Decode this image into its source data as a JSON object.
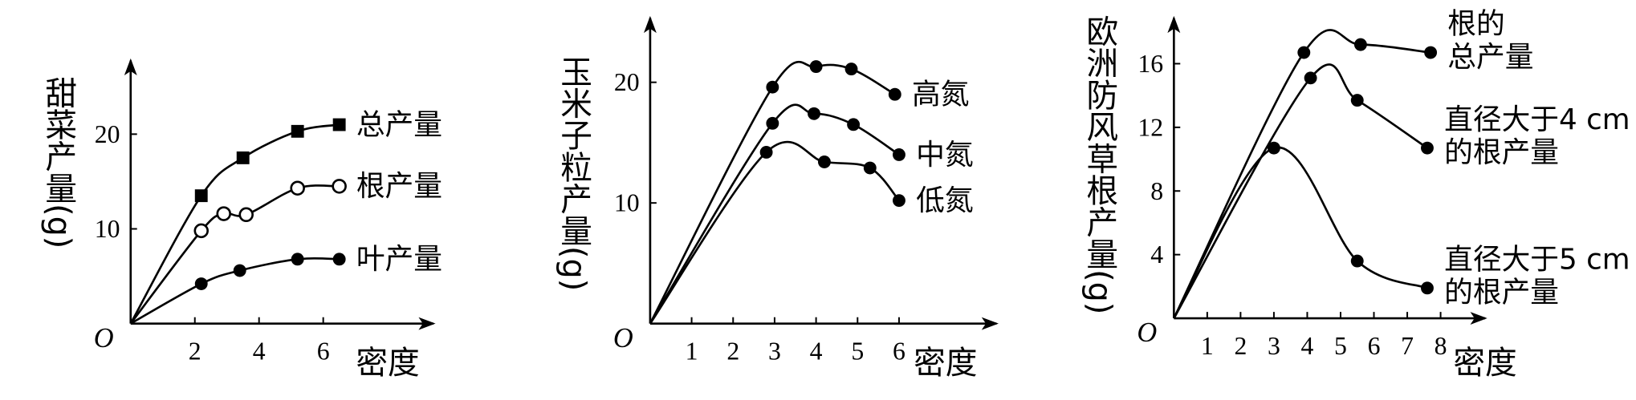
{
  "chart_data": [
    {
      "type": "line",
      "origin_label": "O",
      "y_label": "甜菜产量(g)",
      "x_label": "密度",
      "xlim": [
        0,
        9.5
      ],
      "ylim": [
        0,
        28
      ],
      "xticks": [
        2,
        4,
        6
      ],
      "yticks": [
        10,
        20
      ],
      "series": [
        {
          "name": "总产量",
          "color": "#000",
          "marker": "square",
          "x": [
            2.2,
            3.5,
            5.2,
            6.5
          ],
          "values": [
            13.5,
            17.5,
            20.3,
            21
          ]
        },
        {
          "name": "根产量",
          "color": "#000",
          "marker": "open-circle",
          "x": [
            2.2,
            2.9,
            3.6,
            5.2,
            6.5
          ],
          "values": [
            9.8,
            11.6,
            11.5,
            14.3,
            14.5
          ]
        },
        {
          "name": "叶产量",
          "color": "#000",
          "marker": "circle",
          "x": [
            2.2,
            3.4,
            5.2,
            6.5
          ],
          "values": [
            4.2,
            5.6,
            6.8,
            6.8
          ]
        }
      ]
    },
    {
      "type": "line",
      "origin_label": "O",
      "y_label": "玉米子粒产量(g)",
      "x_label": "密度",
      "xlim": [
        0,
        8.4
      ],
      "ylim": [
        0,
        25.5
      ],
      "xticks": [
        1,
        2,
        3,
        4,
        5,
        6
      ],
      "yticks": [
        10,
        20
      ],
      "series": [
        {
          "name": "高氮",
          "color": "#000",
          "marker": "circle",
          "x": [
            2.95,
            4.0,
            4.85,
            5.9
          ],
          "values": [
            19.6,
            21.3,
            21.1,
            19.0
          ]
        },
        {
          "name": "中氮",
          "color": "#000",
          "marker": "circle",
          "x": [
            2.95,
            3.95,
            4.9,
            6.0
          ],
          "values": [
            16.6,
            17.4,
            16.5,
            14.0
          ]
        },
        {
          "name": "低氮",
          "color": "#000",
          "marker": "circle",
          "x": [
            2.8,
            4.2,
            5.3,
            6.0
          ],
          "values": [
            14.2,
            13.4,
            12.9,
            10.2
          ]
        }
      ]
    },
    {
      "type": "line",
      "origin_label": "O",
      "y_label": "欧洲防风草根产量(g)",
      "x_label": "密度",
      "xlim": [
        0,
        9.4
      ],
      "ylim": [
        0,
        19
      ],
      "xticks": [
        1,
        2,
        3,
        4,
        5,
        6,
        7,
        8
      ],
      "yticks": [
        4,
        8,
        12,
        16
      ],
      "series": [
        {
          "name": "根的\n总产量",
          "color": "#000",
          "marker": "circle",
          "x": [
            3.9,
            5.6,
            7.7
          ],
          "values": [
            16.7,
            17.2,
            16.7
          ]
        },
        {
          "name": "直径大于4 cm\n的根产量",
          "color": "#000",
          "marker": "circle",
          "x": [
            4.1,
            5.5,
            7.6
          ],
          "values": [
            15.1,
            13.7,
            10.7
          ]
        },
        {
          "name": "直径大于5 cm\n的根产量",
          "color": "#000",
          "marker": "circle",
          "x": [
            3.0,
            5.5,
            7.6
          ],
          "values": [
            10.7,
            3.6,
            1.9
          ]
        }
      ]
    }
  ]
}
